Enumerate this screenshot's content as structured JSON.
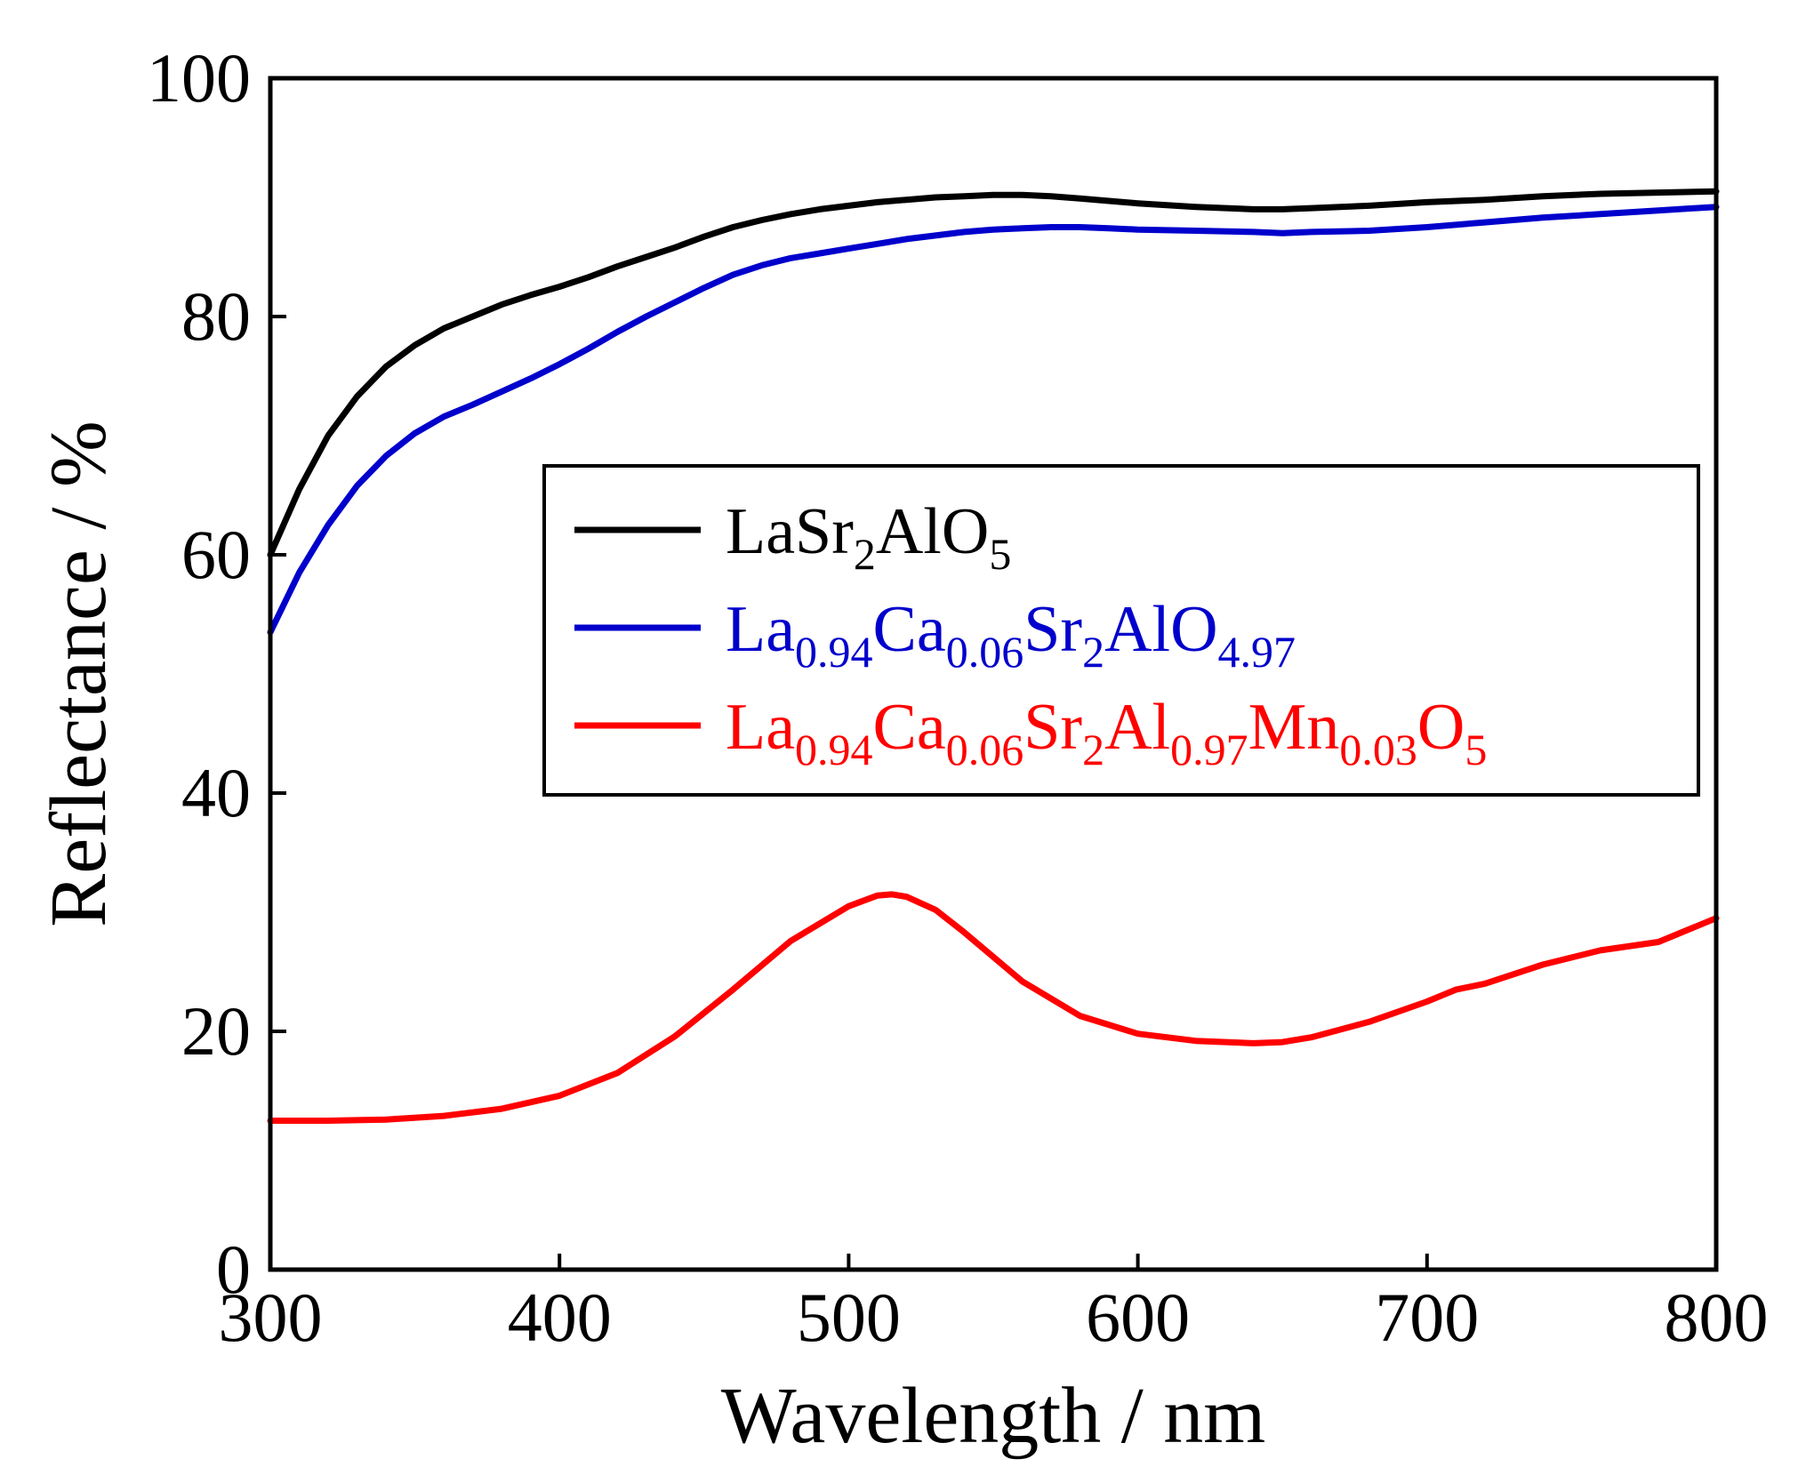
{
  "chart_data": {
    "type": "line",
    "title": "",
    "xlabel": "Wavelength / nm",
    "ylabel": "Reflectance / %",
    "xlim": [
      300,
      800
    ],
    "ylim": [
      0,
      100
    ],
    "grid": false,
    "legend_position": "center-right",
    "x_ticks": [
      "300",
      "400",
      "500",
      "600",
      "700",
      "800"
    ],
    "y_ticks": [
      "0",
      "20",
      "40",
      "60",
      "80",
      "100"
    ],
    "series": [
      {
        "name": "LaSr2AlO5",
        "color": "#000000",
        "legend_parts": [
          {
            "t": "LaSr"
          },
          {
            "t": "2",
            "sub": true
          },
          {
            "t": "AlO"
          },
          {
            "t": "5",
            "sub": true
          }
        ],
        "x": [
          300,
          310,
          320,
          330,
          340,
          350,
          360,
          370,
          380,
          390,
          400,
          410,
          420,
          430,
          440,
          450,
          460,
          470,
          480,
          490,
          500,
          510,
          520,
          530,
          540,
          550,
          560,
          570,
          580,
          590,
          600,
          620,
          640,
          650,
          660,
          680,
          700,
          720,
          740,
          760,
          780,
          800
        ],
        "values": [
          60,
          65.5,
          70,
          73.3,
          75.8,
          77.6,
          79.0,
          80.0,
          81.0,
          81.8,
          82.5,
          83.3,
          84.2,
          85.0,
          85.8,
          86.7,
          87.5,
          88.1,
          88.6,
          89.0,
          89.3,
          89.6,
          89.8,
          90.0,
          90.1,
          90.2,
          90.2,
          90.1,
          89.9,
          89.7,
          89.5,
          89.2,
          89.0,
          89.0,
          89.1,
          89.3,
          89.6,
          89.8,
          90.1,
          90.3,
          90.4,
          90.5
        ]
      },
      {
        "name": "La0.94Ca0.06Sr2AlO4.97",
        "color": "#0000cc",
        "legend_parts": [
          {
            "t": "La"
          },
          {
            "t": "0.94",
            "sub": true
          },
          {
            "t": "Ca"
          },
          {
            "t": "0.06",
            "sub": true
          },
          {
            "t": "Sr"
          },
          {
            "t": "2",
            "sub": true
          },
          {
            "t": "AlO"
          },
          {
            "t": "4.97",
            "sub": true
          }
        ],
        "x": [
          300,
          310,
          320,
          330,
          340,
          350,
          360,
          370,
          380,
          390,
          400,
          410,
          420,
          430,
          440,
          450,
          460,
          470,
          480,
          490,
          500,
          510,
          520,
          530,
          540,
          550,
          560,
          570,
          580,
          590,
          600,
          620,
          640,
          650,
          660,
          680,
          700,
          720,
          740,
          760,
          780,
          800
        ],
        "values": [
          53.5,
          58.5,
          62.5,
          65.8,
          68.3,
          70.2,
          71.6,
          72.6,
          73.7,
          74.8,
          76.0,
          77.3,
          78.7,
          80.0,
          81.2,
          82.4,
          83.5,
          84.3,
          84.9,
          85.3,
          85.7,
          86.1,
          86.5,
          86.8,
          87.1,
          87.3,
          87.4,
          87.5,
          87.5,
          87.4,
          87.3,
          87.2,
          87.1,
          87.0,
          87.1,
          87.2,
          87.5,
          87.9,
          88.3,
          88.6,
          88.9,
          89.2
        ]
      },
      {
        "name": "La0.94Ca0.06Sr2Al0.97Mn0.03O5",
        "color": "#ff0000",
        "legend_parts": [
          {
            "t": "La"
          },
          {
            "t": "0.94",
            "sub": true
          },
          {
            "t": "Ca"
          },
          {
            "t": "0.06",
            "sub": true
          },
          {
            "t": "Sr"
          },
          {
            "t": "2",
            "sub": true
          },
          {
            "t": "Al"
          },
          {
            "t": "0.97",
            "sub": true
          },
          {
            "t": "Mn"
          },
          {
            "t": "0.03",
            "sub": true
          },
          {
            "t": "O"
          },
          {
            "t": "5",
            "sub": true
          }
        ],
        "x": [
          300,
          320,
          340,
          360,
          380,
          400,
          420,
          440,
          460,
          480,
          500,
          510,
          515,
          520,
          530,
          540,
          560,
          580,
          600,
          620,
          640,
          650,
          660,
          680,
          700,
          710,
          720,
          740,
          760,
          780,
          800
        ],
        "values": [
          12.5,
          12.5,
          12.6,
          12.9,
          13.5,
          14.6,
          16.5,
          19.6,
          23.5,
          27.6,
          30.5,
          31.4,
          31.5,
          31.3,
          30.2,
          28.3,
          24.2,
          21.3,
          19.8,
          19.2,
          19.0,
          19.1,
          19.5,
          20.8,
          22.5,
          23.5,
          24.0,
          25.6,
          26.8,
          27.5,
          29.5
        ]
      }
    ]
  }
}
